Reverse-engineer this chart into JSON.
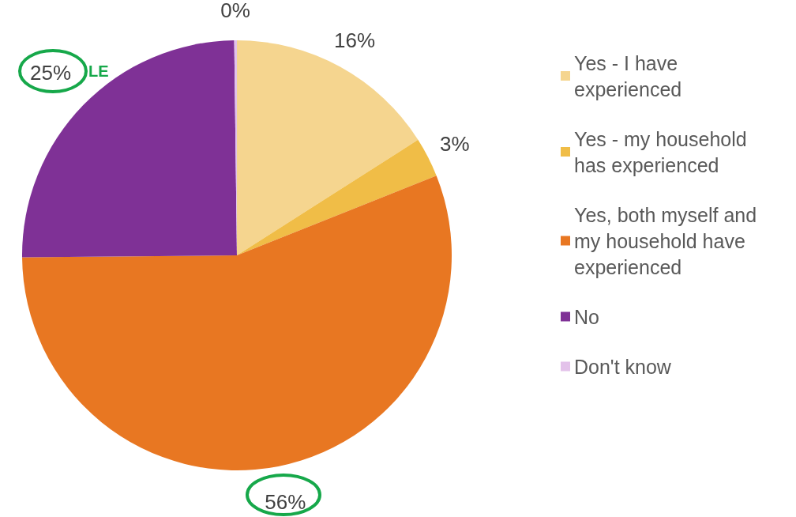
{
  "chart_data": {
    "type": "pie",
    "categories": [
      "Yes - I have experienced",
      "Yes - my household has experienced",
      "Yes, both myself and my household have experienced",
      "No",
      "Don't know"
    ],
    "values": [
      16,
      3,
      56,
      25,
      0.2
    ],
    "value_labels": [
      "16%",
      "3%",
      "56%",
      "25%",
      "0%"
    ],
    "colors": [
      "#f5d58f",
      "#f0bd47",
      "#e87722",
      "#7f3196",
      "#e3c2ea"
    ],
    "legend": "right",
    "annotations": [
      "LE"
    ]
  }
}
